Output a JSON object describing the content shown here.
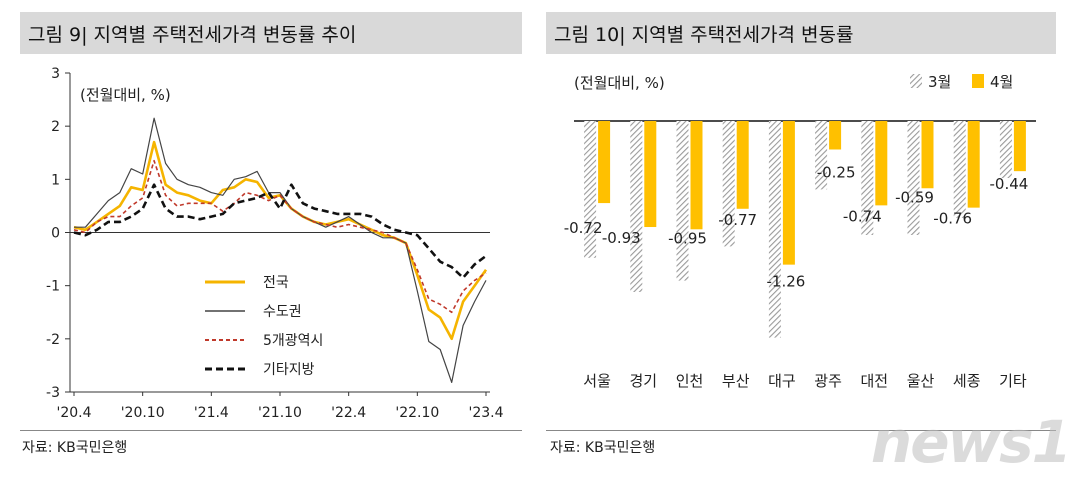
{
  "left": {
    "title": "그림 9| 지역별 주택전세가격 변동률 추이",
    "source": "자료: KB국민은행",
    "unit_label": "(전월대비, %)"
  },
  "right": {
    "title": "그림 10| 지역별 주택전세가격 변동률",
    "source": "자료: KB국민은행",
    "unit_label": "(전월대비, %)"
  },
  "watermark": "news1",
  "colors": {
    "jeonguk": "#f5b400",
    "sudogwon": "#444444",
    "metro5": "#c0392b",
    "other": "#111111",
    "april": "#ffc000",
    "march": "#aaaaaa"
  },
  "chart_data": [
    {
      "type": "line",
      "ylim": [
        -3,
        3
      ],
      "yticks": [
        3,
        2,
        1,
        0,
        -1,
        -2,
        -3
      ],
      "ytick_labels": [
        "3",
        "2",
        "1",
        "0",
        "-1",
        "-2",
        "-3"
      ],
      "xtick_labels": [
        "'20.4",
        "'20.10",
        "'21.4",
        "'21.10",
        "'22.4",
        "'22.10",
        "'23.4"
      ],
      "legend": [
        "전국",
        "수도권",
        "5개광역시",
        "기타지방"
      ],
      "series": [
        {
          "name": "전국",
          "values": [
            0.1,
            0.05,
            0.2,
            0.35,
            0.5,
            0.85,
            0.8,
            1.7,
            0.9,
            0.75,
            0.7,
            0.6,
            0.55,
            0.8,
            0.85,
            1.0,
            0.95,
            0.65,
            0.7,
            0.45,
            0.3,
            0.2,
            0.15,
            0.2,
            0.25,
            0.15,
            0.05,
            -0.05,
            -0.1,
            -0.2,
            -0.8,
            -1.45,
            -1.6,
            -2.0,
            -1.3,
            -1.0,
            -0.7
          ]
        },
        {
          "name": "수도권",
          "values": [
            0.1,
            0.1,
            0.35,
            0.6,
            0.75,
            1.2,
            1.1,
            2.15,
            1.3,
            1.0,
            0.9,
            0.85,
            0.75,
            0.7,
            1.0,
            1.05,
            1.15,
            0.75,
            0.75,
            0.45,
            0.3,
            0.2,
            0.1,
            0.2,
            0.3,
            0.15,
            0.0,
            -0.1,
            -0.1,
            -0.2,
            -1.1,
            -2.05,
            -2.2,
            -2.82,
            -1.75,
            -1.3,
            -0.9
          ]
        },
        {
          "name": "5개광역시",
          "values": [
            0.05,
            0.0,
            0.2,
            0.3,
            0.3,
            0.5,
            0.65,
            1.35,
            0.7,
            0.5,
            0.55,
            0.55,
            0.55,
            0.4,
            0.55,
            0.75,
            0.7,
            0.6,
            0.7,
            0.45,
            0.3,
            0.2,
            0.15,
            0.1,
            0.15,
            0.1,
            0.05,
            0.0,
            -0.1,
            -0.2,
            -0.7,
            -1.25,
            -1.35,
            -1.5,
            -1.1,
            -0.9,
            -0.76
          ]
        },
        {
          "name": "기타지방",
          "values": [
            0.0,
            -0.05,
            0.05,
            0.2,
            0.2,
            0.3,
            0.45,
            0.9,
            0.45,
            0.3,
            0.3,
            0.25,
            0.3,
            0.35,
            0.55,
            0.6,
            0.65,
            0.75,
            0.45,
            0.9,
            0.55,
            0.45,
            0.4,
            0.35,
            0.35,
            0.35,
            0.3,
            0.15,
            0.05,
            0.0,
            -0.05,
            -0.3,
            -0.55,
            -0.65,
            -0.85,
            -0.6,
            -0.44
          ]
        }
      ]
    },
    {
      "type": "bar",
      "categories": [
        "서울",
        "경기",
        "인천",
        "부산",
        "대구",
        "광주",
        "대전",
        "울산",
        "세종",
        "기타"
      ],
      "legend": [
        "3월",
        "4월"
      ],
      "series": [
        {
          "name": "3월",
          "values": [
            -1.2,
            -1.5,
            -1.4,
            -1.1,
            -1.9,
            -0.6,
            -1.0,
            -1.0,
            -0.85,
            -0.5
          ]
        },
        {
          "name": "4월",
          "values": [
            -0.72,
            -0.93,
            -0.95,
            -0.77,
            -1.26,
            -0.25,
            -0.74,
            -0.59,
            -0.76,
            -0.44
          ]
        }
      ],
      "data_labels": [
        "-0.72",
        "-0.93",
        "-0.95",
        "-0.77",
        "-1.26",
        "-0.25",
        "-0.74",
        "-0.59",
        "-0.76",
        "-0.44"
      ],
      "ylim": [
        -2.0,
        0
      ]
    }
  ]
}
